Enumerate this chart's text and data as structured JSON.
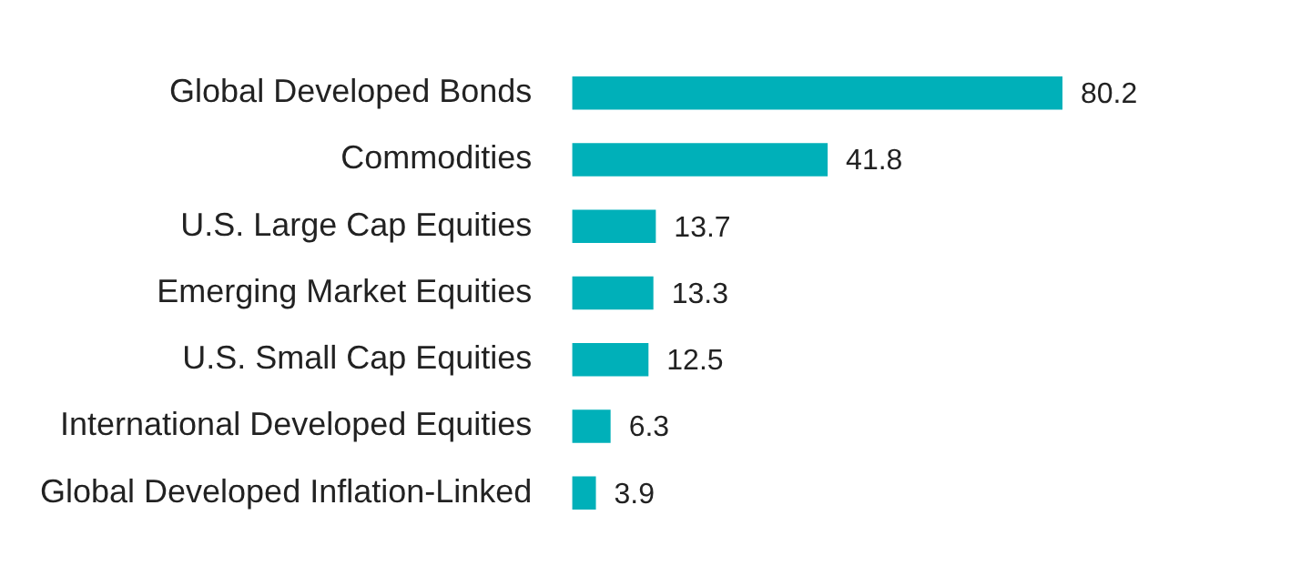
{
  "chart_data": {
    "type": "bar",
    "orientation": "horizontal",
    "categories": [
      "Global Developed Bonds",
      "Commodities",
      "U.S. Large Cap Equities",
      "Emerging Market Equities",
      "U.S. Small Cap Equities",
      "International Developed Equities",
      "Global Developed Inflation-Linked"
    ],
    "values": [
      80.2,
      41.8,
      13.7,
      13.3,
      12.5,
      6.3,
      3.9
    ],
    "color": "#00b0b9",
    "data_labels": true
  }
}
